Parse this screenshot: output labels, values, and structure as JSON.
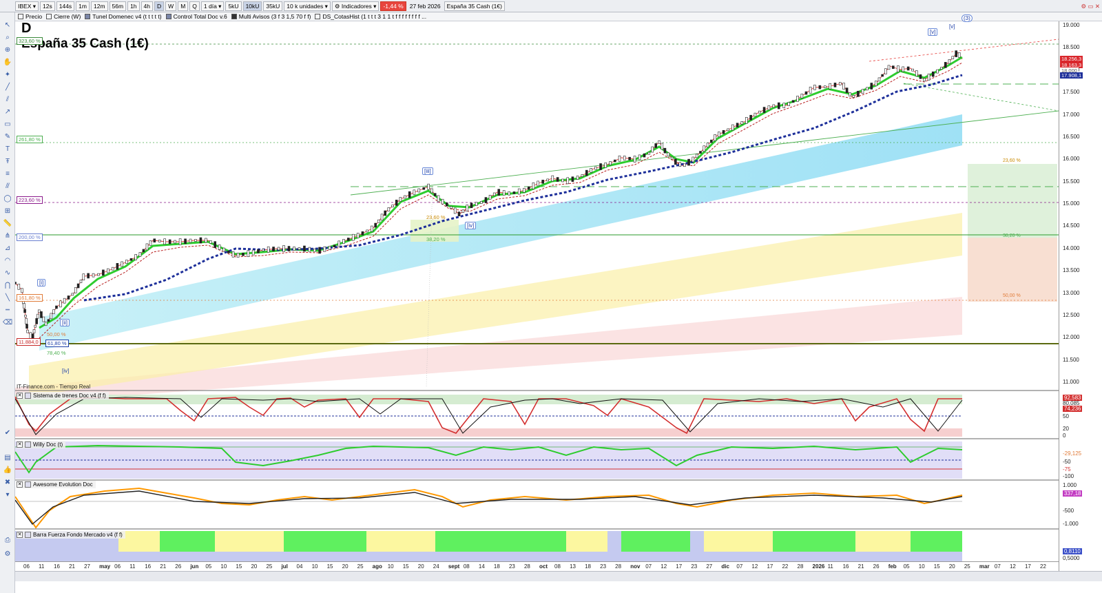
{
  "toolbar": {
    "symbol": "IBEX",
    "timeframes": [
      "12s",
      "144s",
      "1m",
      "12m",
      "56m",
      "1h",
      "4h",
      "D",
      "W",
      "M",
      "Q"
    ],
    "active_timeframe": "D",
    "period": "1 día",
    "tick_units": [
      "5kU",
      "10kU",
      "35kU"
    ],
    "active_tick_unit": "10kU",
    "units_select": "10 k unidades",
    "indicators_label": "Indicadores",
    "change": "-1,44 %",
    "date": "27 feb 2026",
    "instrument": "España 35 Cash (1€)"
  },
  "indicator_bar": [
    {
      "label": "Precio",
      "style": "empty"
    },
    {
      "label": "Cierre (W)",
      "style": "empty"
    },
    {
      "label": "Tunel Domenec v4 (t t t t t)",
      "style": "hatch"
    },
    {
      "label": "Control Total Doc v.6",
      "style": "hatch"
    },
    {
      "label": "Multi Avisos (3 f 3 1,5 70 f f)",
      "style": "filled"
    },
    {
      "label": "DS_CotasHist (1 t t t 3 1 1 t f f f f f f f f ...",
      "style": "empty"
    }
  ],
  "chart": {
    "timeframe_letter": "D",
    "title": "España 35 Cash (1€)",
    "source": "IT-Finance.com - Tiempo Real",
    "price_axis": [
      "19.000",
      "18.500",
      "18.000",
      "17.500",
      "17.000",
      "16.500",
      "16.000",
      "15.500",
      "15.000",
      "14.500",
      "14.000",
      "13.500",
      "13.000",
      "12.500",
      "12.000",
      "11.500",
      "11.000"
    ],
    "price_tags": [
      {
        "text": "18.256,3",
        "color": "#d9262b"
      },
      {
        "text": "18.163,3",
        "color": "#d9262b"
      },
      {
        "text": "18.000",
        "color": "#555555"
      },
      {
        "text": "17.908,1",
        "color": "#1d2f9a"
      }
    ],
    "levels": [
      {
        "text": "323,60 %",
        "color": "#3a8a3a"
      },
      {
        "text": "261,80 %",
        "color": "#4caf50"
      },
      {
        "text": "223,60 %",
        "color": "#8b1a8b"
      },
      {
        "text": "200,00 %",
        "color": "#6a7fd0"
      },
      {
        "text": "161,80 %",
        "color": "#e07b39"
      },
      {
        "text": "11.884,0",
        "color": "#c62828"
      },
      {
        "text": "61,80 %",
        "color": "#1d3fa8"
      },
      {
        "text": "50,00 %",
        "color": "#e07b39"
      },
      {
        "text": "78,40 %",
        "color": "#4caf50"
      },
      {
        "text": "38,20 %",
        "color": "#4caf50"
      },
      {
        "text": "23,60 %",
        "color": "#c98a00"
      }
    ],
    "fib_right": [
      "23,60 %",
      "38,20 %",
      "50,00 %"
    ],
    "waves": [
      "[i]",
      "[ii]",
      "[iii]",
      "[iv]",
      "[v]",
      "[iv]",
      "[v]",
      "(3)"
    ],
    "x_axis": [
      "06",
      "11",
      "16",
      "21",
      "27",
      "may",
      "06",
      "11",
      "16",
      "21",
      "26",
      "jun",
      "05",
      "10",
      "15",
      "20",
      "25",
      "jul",
      "04",
      "10",
      "15",
      "20",
      "25",
      "ago",
      "10",
      "15",
      "20",
      "24",
      "sept",
      "08",
      "14",
      "18",
      "23",
      "28",
      "oct",
      "08",
      "13",
      "18",
      "23",
      "28",
      "nov",
      "07",
      "12",
      "17",
      "23",
      "27",
      "dic",
      "07",
      "12",
      "17",
      "22",
      "28",
      "2026",
      "11",
      "16",
      "21",
      "26",
      "feb",
      "05",
      "10",
      "15",
      "20",
      "25",
      "mar",
      "07",
      "12",
      "17",
      "22"
    ]
  },
  "panes": {
    "trenes": {
      "title": "Sistema de trenes Doc v4 (f f)",
      "values": [
        "92,583",
        "80,085",
        "74,236",
        "50",
        "20",
        "0"
      ]
    },
    "willy": {
      "title": "Willy Doc (t)",
      "values": [
        "-29,125",
        "-50",
        "-75",
        "-100"
      ]
    },
    "awesome": {
      "title": "Awesome Evolution Doc",
      "values": [
        "1.000",
        "337,18",
        "-500",
        "-1.000"
      ]
    },
    "barra": {
      "title": "Barra Fuerza Fondo Mercado v4 (f f)",
      "values": [
        "0,8110",
        "0,5000"
      ]
    }
  }
}
